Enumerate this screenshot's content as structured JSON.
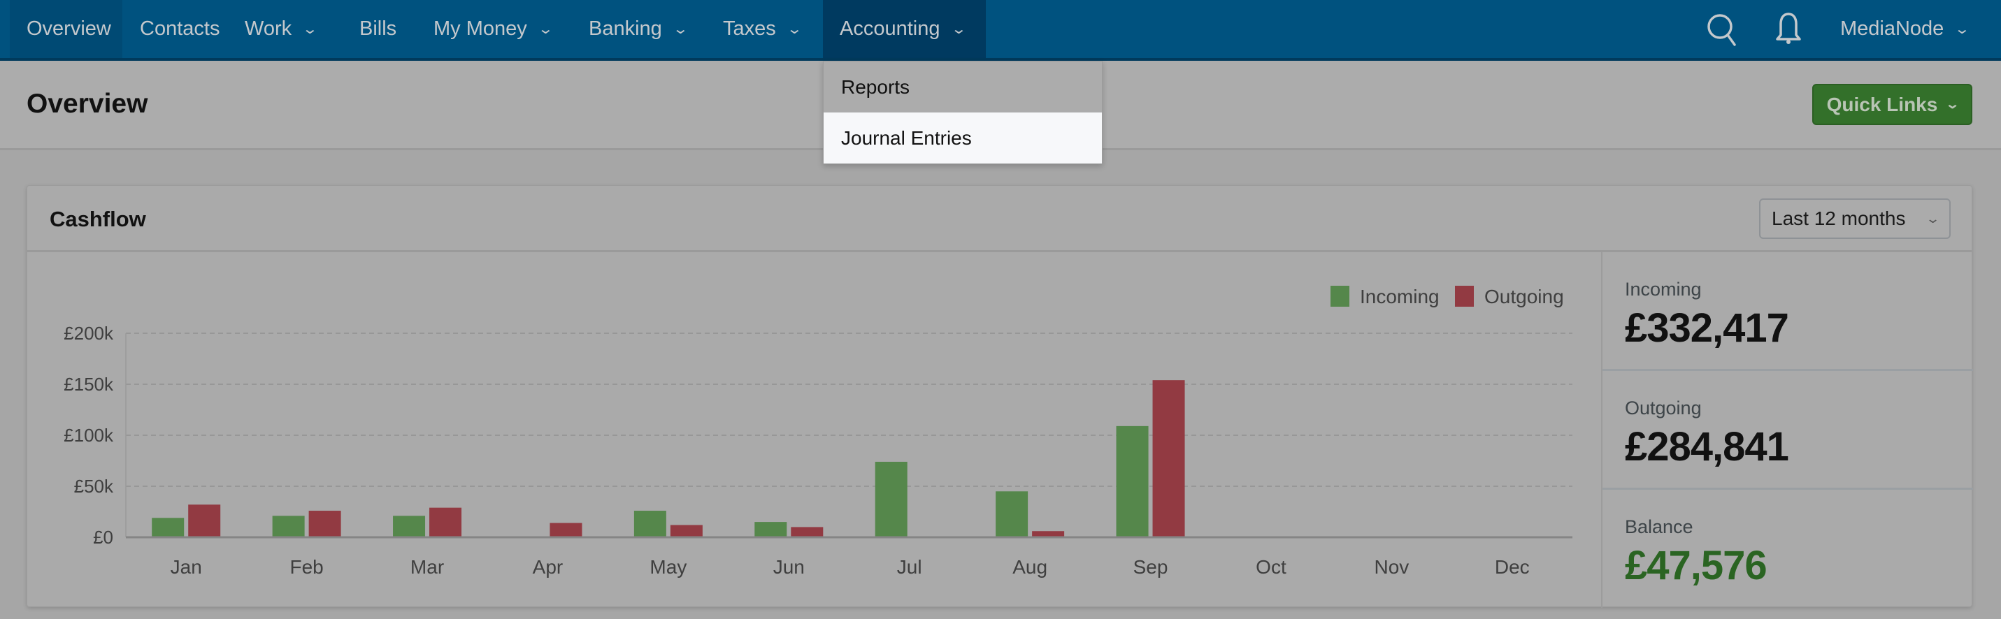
{
  "nav": {
    "items": [
      {
        "label": "Overview",
        "dropdown": false,
        "state": "active"
      },
      {
        "label": "Contacts",
        "dropdown": false
      },
      {
        "label": "Work",
        "dropdown": true
      },
      {
        "label": "Bills",
        "dropdown": false
      },
      {
        "label": "My Money",
        "dropdown": true
      },
      {
        "label": "Banking",
        "dropdown": true
      },
      {
        "label": "Taxes",
        "dropdown": true
      },
      {
        "label": "Accounting",
        "dropdown": true,
        "state": "open"
      }
    ],
    "account": "MediaNode",
    "icons": [
      "search-icon",
      "bell-icon"
    ],
    "chevron": "⌄"
  },
  "accounting_menu": {
    "items": [
      "Reports",
      "Journal Entries"
    ],
    "highlighted": "Journal Entries"
  },
  "header": {
    "title": "Overview",
    "quick_links": "Quick Links"
  },
  "cashflow": {
    "title": "Cashflow",
    "period": "Last 12 months",
    "summary": {
      "incoming_label": "Incoming",
      "incoming": "£332,417",
      "outgoing_label": "Outgoing",
      "outgoing": "£284,841",
      "balance_label": "Balance",
      "balance": "£47,576"
    }
  },
  "chart_data": {
    "type": "bar",
    "categories": [
      "Jan",
      "Feb",
      "Mar",
      "Apr",
      "May",
      "Jun",
      "Jul",
      "Aug",
      "Sep",
      "Oct",
      "Nov",
      "Dec"
    ],
    "series": [
      {
        "name": "Incoming",
        "color": "#55874b",
        "values": [
          19000,
          21000,
          21000,
          0,
          26000,
          15000,
          74000,
          45000,
          109000,
          0,
          500,
          0
        ]
      },
      {
        "name": "Outgoing",
        "color": "#923a42",
        "values": [
          32000,
          26000,
          29000,
          14000,
          12000,
          10000,
          0,
          6000,
          154000,
          0,
          500,
          0
        ]
      }
    ],
    "yticks": [
      "£0",
      "£50k",
      "£100k",
      "£150k",
      "£200k"
    ],
    "ylim": [
      0,
      200000
    ],
    "grid": true,
    "legend": "top-right"
  },
  "colors": {
    "nav": "#00527f",
    "quick_links": "#33702a",
    "balance": "#2a6422"
  }
}
